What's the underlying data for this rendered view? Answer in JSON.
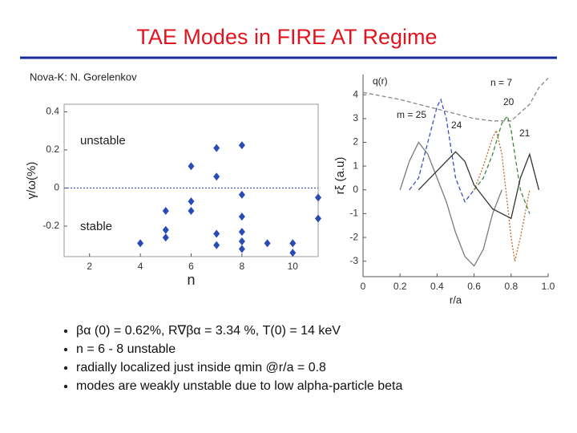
{
  "title": "TAE Modes in FIRE AT Regime",
  "credit": "Nova-K: N. Gorelenkov",
  "bullets": [
    "βα (0) = 0.62%, R∇βα = 3.34 %, T(0) = 14 keV",
    "n = 6 - 8 unstable",
    "radially localized just inside qmin @r/a = 0.8",
    "modes are weakly unstable due to low alpha-particle beta"
  ],
  "chart_data": [
    {
      "type": "scatter",
      "xlabel": "n",
      "ylabel": "γ/ω(%)",
      "annotations": [
        "unstable",
        "stable"
      ],
      "x": [
        4,
        5,
        5,
        5,
        6,
        6,
        6,
        7,
        7,
        7,
        7,
        8,
        8,
        8,
        8,
        8,
        8,
        9,
        10,
        10,
        11,
        11
      ],
      "values": [
        -0.29,
        -0.12,
        -0.22,
        -0.26,
        0.115,
        -0.07,
        -0.12,
        0.21,
        0.06,
        -0.24,
        -0.3,
        0.225,
        -0.035,
        -0.15,
        -0.23,
        -0.28,
        -0.32,
        -0.29,
        -0.29,
        -0.34,
        -0.05,
        -0.16
      ],
      "color": "#2a4bb5",
      "xlim": [
        1,
        11
      ],
      "ylim": [
        -0.36,
        0.44
      ],
      "xticks": [
        2,
        4,
        6,
        8,
        10
      ],
      "yticks": [
        -0.2,
        0,
        0.2,
        0.4
      ],
      "zero_line": true
    },
    {
      "type": "line",
      "xlabel": "r/a",
      "ylabel": "rξ (a.u)",
      "annotations": [
        "q(r)",
        "n = 7",
        "m = 25",
        "20",
        "24",
        "21"
      ],
      "xlim": [
        0,
        1
      ],
      "ylim": [
        -3.65,
        4.85
      ],
      "xticks": [
        0,
        0.2,
        0.4,
        0.6,
        0.8,
        {
          "value": 1,
          "label": "1.0"
        }
      ],
      "yticks": [
        -3,
        -2,
        -1,
        0,
        1,
        2,
        3,
        4
      ],
      "series": [
        {
          "color": "#888888",
          "style": "dashed",
          "x": [
            0,
            0.2,
            0.4,
            0.6,
            0.7,
            0.8,
            0.9,
            0.95,
            1.0
          ],
          "values": [
            4.1,
            3.8,
            3.4,
            3.0,
            2.9,
            2.9,
            3.6,
            4.3,
            4.7
          ]
        },
        {
          "color": "#3a4fc0",
          "style": "dashed",
          "x": [
            0.25,
            0.3,
            0.35,
            0.4,
            0.42,
            0.45,
            0.5,
            0.55,
            0.6
          ],
          "values": [
            0,
            0.5,
            2.0,
            3.5,
            3.8,
            3.0,
            0.5,
            -0.5,
            0
          ]
        },
        {
          "color": "#7a7a7a",
          "style": "solid",
          "x": [
            0.2,
            0.25,
            0.3,
            0.35,
            0.4,
            0.45,
            0.5,
            0.55,
            0.6,
            0.65,
            0.7,
            0.75
          ],
          "values": [
            0,
            1.2,
            2.0,
            1.5,
            0.5,
            -0.5,
            -1.8,
            -2.8,
            -3.2,
            -2.5,
            -1,
            0
          ]
        },
        {
          "color": "#3c8a3c",
          "style": "dashed",
          "x": [
            0.6,
            0.65,
            0.7,
            0.75,
            0.78,
            0.8,
            0.85,
            0.9
          ],
          "values": [
            0,
            0.5,
            1.5,
            2.8,
            3.1,
            2.5,
            0,
            -1
          ]
        },
        {
          "color": "#c46a1e",
          "style": "dotted",
          "x": [
            0.6,
            0.65,
            0.7,
            0.72,
            0.75,
            0.8,
            0.82,
            0.85,
            0.9
          ],
          "values": [
            0,
            1,
            2.2,
            2.5,
            1.5,
            -2,
            -3,
            -2,
            0
          ]
        },
        {
          "color": "#333333",
          "style": "solid",
          "x": [
            0.3,
            0.4,
            0.5,
            0.55,
            0.6,
            0.7,
            0.8,
            0.85,
            0.9,
            0.95
          ],
          "values": [
            0,
            0.8,
            1.6,
            1.2,
            0.2,
            -0.8,
            -1.2,
            0.5,
            1.5,
            0
          ]
        }
      ]
    }
  ]
}
